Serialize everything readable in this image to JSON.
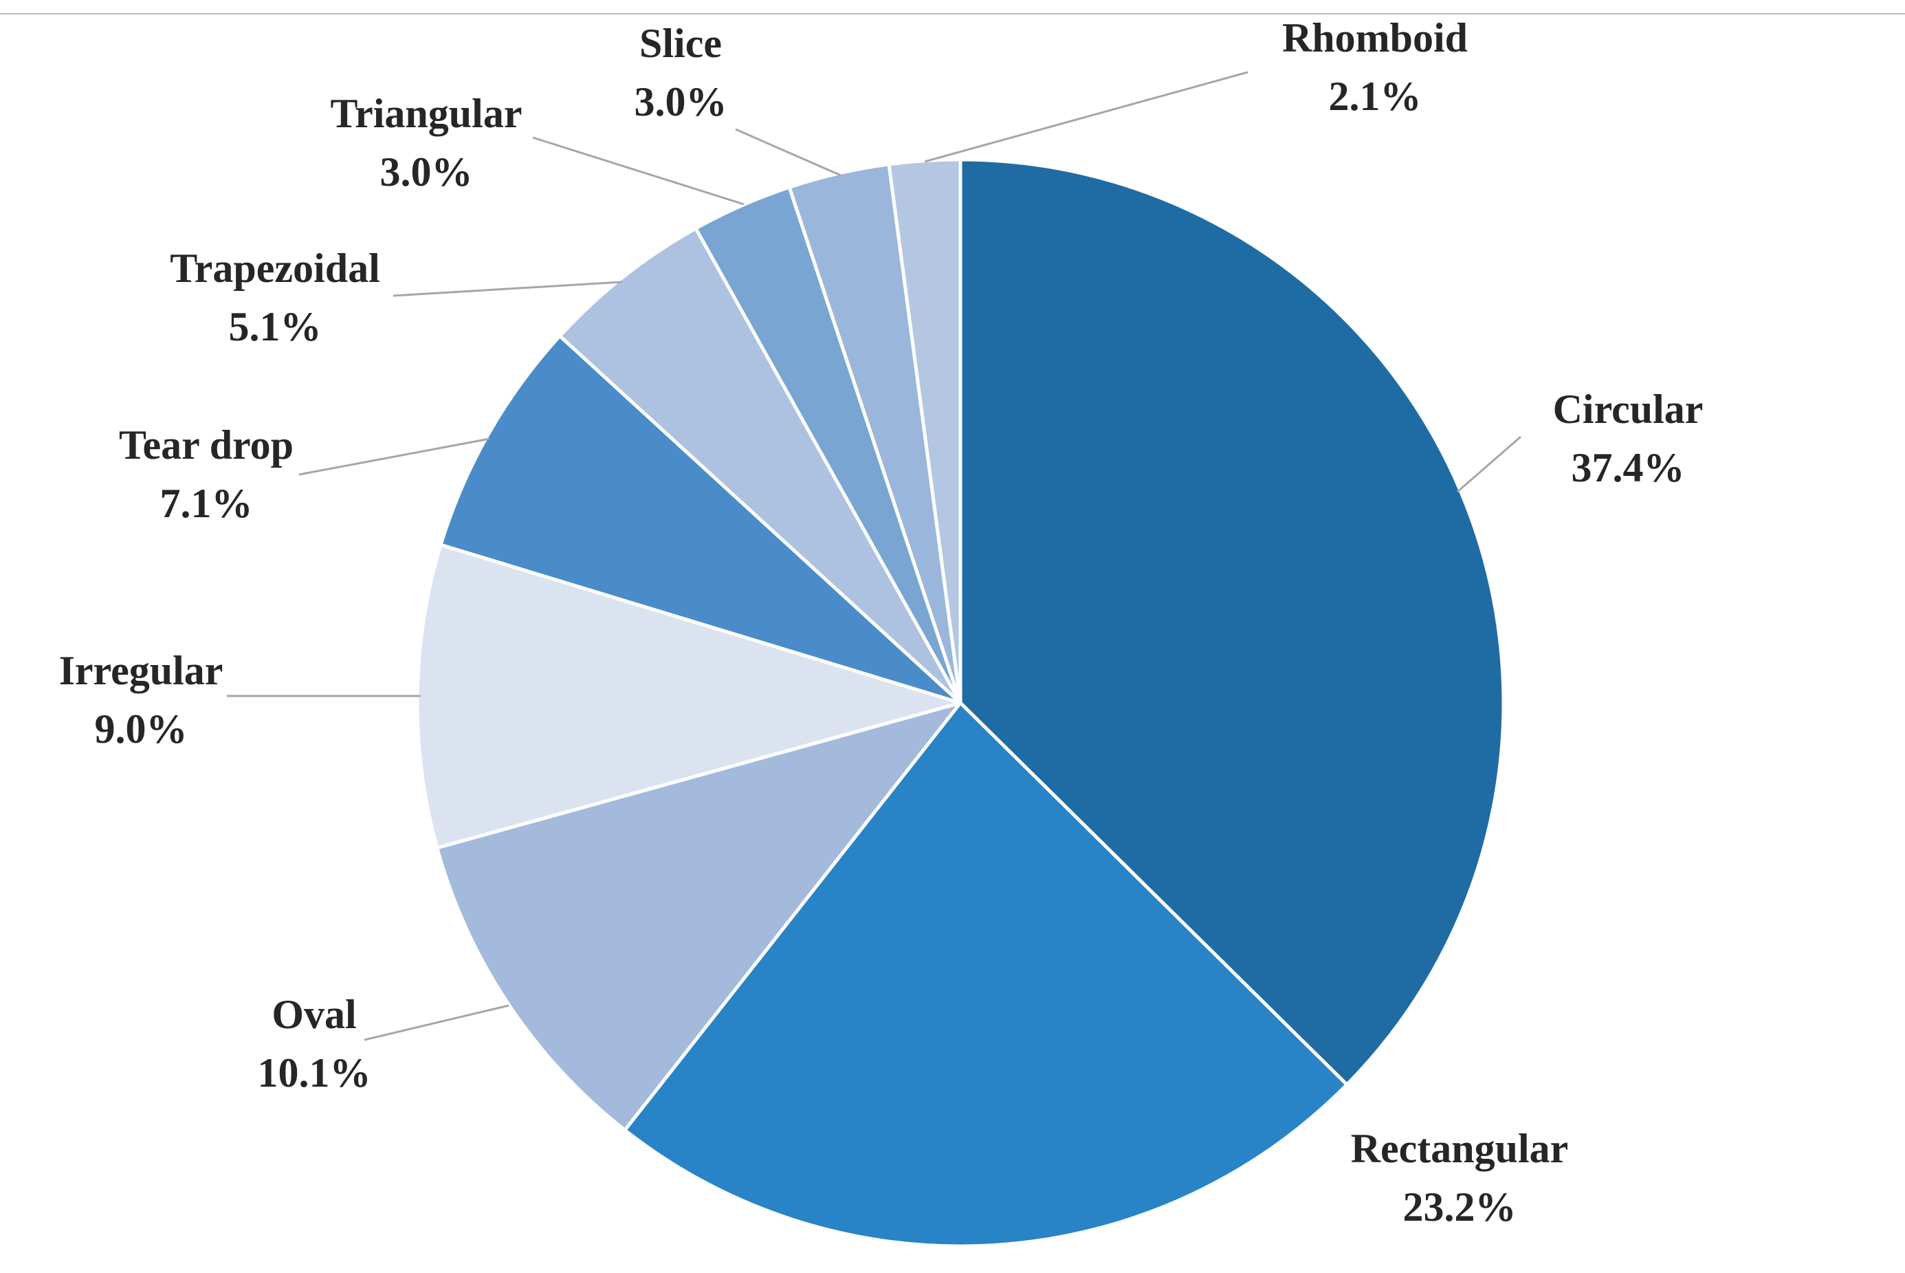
{
  "chart_data": {
    "type": "pie",
    "title": "",
    "start_angle_deg": 0,
    "direction": "clockwise",
    "slices": [
      {
        "label": "Circular",
        "value": 37.4,
        "display": "37.4%",
        "color": "#1f6ca5"
      },
      {
        "label": "Rectangular",
        "value": 23.2,
        "display": "23.2%",
        "color": "#2883c7"
      },
      {
        "label": "Oval",
        "value": 10.1,
        "display": "10.1%",
        "color": "#a3badc"
      },
      {
        "label": "Irregular",
        "value": 9.0,
        "display": "9.0%",
        "color": "#dce3f0"
      },
      {
        "label": "Tear drop",
        "value": 7.1,
        "display": "7.1%",
        "color": "#4a8cc9"
      },
      {
        "label": "Trapezoidal",
        "value": 5.1,
        "display": "5.1%",
        "color": "#adc2e0"
      },
      {
        "label": "Triangular",
        "value": 3.0,
        "display": "3.0%",
        "color": "#79a5d2"
      },
      {
        "label": "Slice",
        "value": 3.0,
        "display": "3.0%",
        "color": "#9bb6db"
      },
      {
        "label": "Rhomboid",
        "value": 2.1,
        "display": "2.1%",
        "color": "#b3c6e2"
      }
    ],
    "label_style": "outside with leader lines",
    "legend": "none",
    "colors": {
      "background": "#ffffff",
      "slice_border": "#ffffff",
      "leader_line": "#a6a6a6",
      "label_text": "#262626",
      "top_rule": "#bfbfbf"
    }
  }
}
